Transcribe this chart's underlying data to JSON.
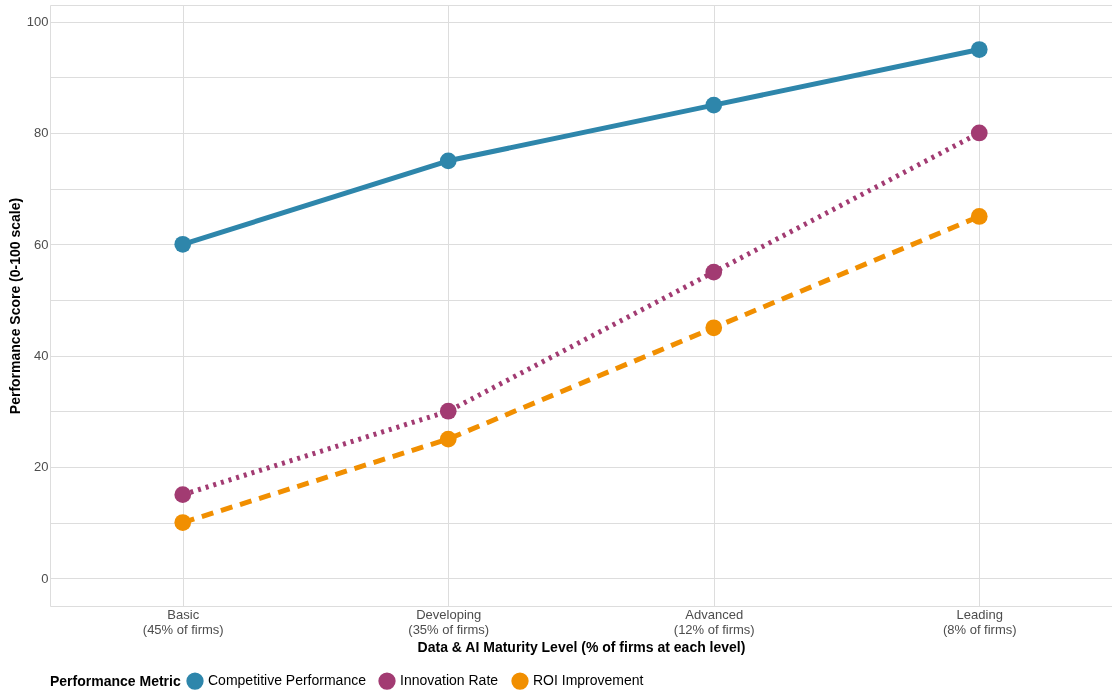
{
  "chart_data": {
    "type": "line",
    "xlabel": "Data & AI Maturity Level (% of firms at each level)",
    "ylabel": "Performance Score (0-100 scale)",
    "legend_title": "Performance Metric",
    "categories": [
      "Basic\n(45% of firms)",
      "Developing\n(35% of firms)",
      "Advanced\n(12% of firms)",
      "Leading\n(8% of firms)"
    ],
    "series": [
      {
        "name": "Competitive Performance",
        "color": "#2e86ab",
        "line_style": "solid",
        "values": [
          60,
          75,
          85,
          95
        ]
      },
      {
        "name": "Innovation Rate",
        "color": "#a23b72",
        "line_style": "dotted",
        "values": [
          15,
          30,
          55,
          80
        ]
      },
      {
        "name": "ROI Improvement",
        "color": "#f18f01",
        "line_style": "dashed",
        "values": [
          10,
          25,
          45,
          65
        ]
      }
    ],
    "ylim": [
      -5,
      103
    ],
    "yticks": [
      0,
      {
        "value": 10,
        "label": null
      },
      20,
      {
        "value": 30,
        "label": null
      },
      40,
      {
        "value": 50,
        "label": null
      },
      60,
      {
        "value": 70,
        "label": null
      },
      80,
      {
        "value": 90,
        "label": null
      },
      100
    ],
    "grid": true,
    "legend": "bottom",
    "marker": "circle"
  }
}
